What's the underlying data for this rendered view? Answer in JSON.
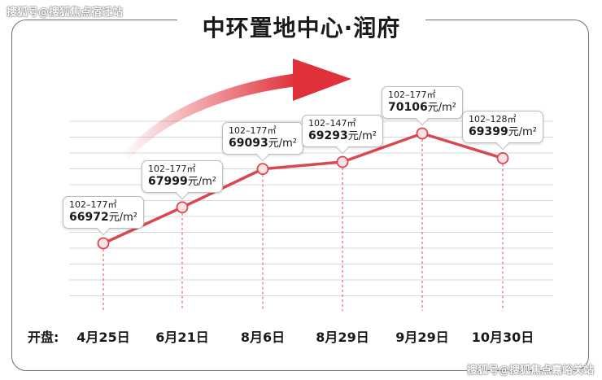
{
  "watermark_top": "搜狐号@搜狐焦点宿迁站",
  "watermark_bottom": "搜狐号@搜狐焦点嘉峪关站",
  "title": "中环置地中心·润府",
  "x_row_label": "开盘:",
  "colors": {
    "line": "#d9474f",
    "marker_fill": "#fbe3e4",
    "arrow": "#e0303a",
    "grid": "#d8d8d8",
    "dash": "#e06a70"
  },
  "chart_data": {
    "type": "line",
    "categories": [
      "4月25日",
      "6月21日",
      "8月6日",
      "8月29日",
      "9月29日",
      "10月30日"
    ],
    "series": [
      {
        "values": [
          66972,
          67999,
          69093,
          69293,
          70106,
          69399
        ]
      }
    ],
    "annotations": [
      {
        "area": "102–177㎡",
        "price": "66972",
        "unit": "元/m²"
      },
      {
        "area": "102–177㎡",
        "price": "67999",
        "unit": "元/m²"
      },
      {
        "area": "102–177㎡",
        "price": "69093",
        "unit": "元/m²"
      },
      {
        "area": "102–147㎡",
        "price": "69293",
        "unit": "元/m²"
      },
      {
        "area": "102–177㎡",
        "price": "70106",
        "unit": "元/m²"
      },
      {
        "area": "102–128㎡",
        "price": "69399",
        "unit": "元/m²"
      }
    ],
    "grid": true,
    "trend_arrow": "up-right"
  }
}
